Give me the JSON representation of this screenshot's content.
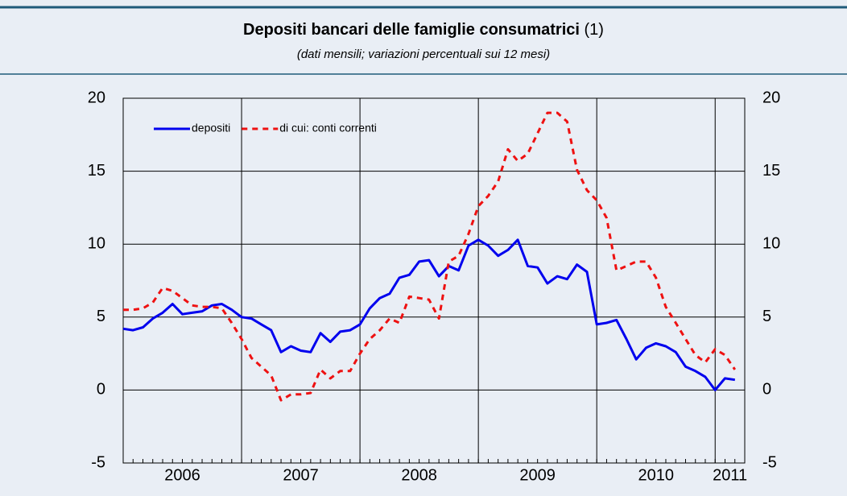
{
  "chart_data": {
    "type": "line",
    "title": "Depositi bancari delle famiglie consumatrici",
    "title_note": "(1)",
    "subtitle": "(dati mensili; variazioni percentuali sui 12 mesi)",
    "x": [
      2006,
      2006.083,
      2006.167,
      2006.25,
      2006.333,
      2006.417,
      2006.5,
      2006.583,
      2006.667,
      2006.75,
      2006.833,
      2006.917,
      2007,
      2007.083,
      2007.167,
      2007.25,
      2007.333,
      2007.417,
      2007.5,
      2007.583,
      2007.667,
      2007.75,
      2007.833,
      2007.917,
      2008,
      2008.083,
      2008.167,
      2008.25,
      2008.333,
      2008.417,
      2008.5,
      2008.583,
      2008.667,
      2008.75,
      2008.833,
      2008.917,
      2009,
      2009.083,
      2009.167,
      2009.25,
      2009.333,
      2009.417,
      2009.5,
      2009.583,
      2009.667,
      2009.75,
      2009.833,
      2009.917,
      2010,
      2010.083,
      2010.167,
      2010.25,
      2010.333,
      2010.417,
      2010.5,
      2010.583,
      2010.667,
      2010.75,
      2010.833,
      2010.917,
      2011,
      2011.083,
      2011.167
    ],
    "series": [
      {
        "name": "depositi",
        "color": "#0000ee",
        "dashed": false,
        "values": [
          4.2,
          4.1,
          4.3,
          4.9,
          5.3,
          5.9,
          5.2,
          5.3,
          5.4,
          5.8,
          5.9,
          5.5,
          5.0,
          4.9,
          4.5,
          4.1,
          2.6,
          3.0,
          2.7,
          2.6,
          3.9,
          3.3,
          4.0,
          4.1,
          4.5,
          5.6,
          6.3,
          6.6,
          7.7,
          7.9,
          8.8,
          8.9,
          7.8,
          8.5,
          8.2,
          9.9,
          10.3,
          9.9,
          9.2,
          9.6,
          10.3,
          8.5,
          8.4,
          7.3,
          7.8,
          7.6,
          8.6,
          8.1,
          4.5,
          4.6,
          4.8,
          3.5,
          2.1,
          2.9,
          3.2,
          3.0,
          2.6,
          1.6,
          1.3,
          0.9,
          0.0,
          0.8,
          0.7
        ]
      },
      {
        "name": "di cui: conti correnti",
        "color": "#ee1111",
        "dashed": true,
        "values": [
          5.5,
          5.5,
          5.6,
          6.0,
          7.0,
          6.8,
          6.3,
          5.8,
          5.7,
          5.7,
          5.6,
          4.6,
          3.5,
          2.2,
          1.6,
          1.0,
          -0.7,
          -0.3,
          -0.3,
          -0.2,
          1.4,
          0.8,
          1.3,
          1.3,
          2.5,
          3.5,
          4.1,
          4.9,
          4.6,
          6.4,
          6.3,
          6.2,
          4.9,
          8.8,
          9.2,
          10.7,
          12.6,
          13.3,
          14.3,
          16.5,
          15.7,
          16.2,
          17.6,
          19.0,
          19.0,
          18.4,
          15.1,
          13.7,
          13.0,
          11.8,
          8.2,
          8.5,
          8.8,
          8.8,
          7.7,
          5.7,
          4.6,
          3.5,
          2.4,
          1.9,
          2.8,
          2.4,
          1.4
        ]
      }
    ],
    "xlim": [
      2006,
      2011.25
    ],
    "xticks": [
      2006,
      2007,
      2008,
      2009,
      2010,
      2011
    ],
    "ylim": [
      -5,
      20
    ],
    "yticks": [
      -5,
      0,
      5,
      10,
      15,
      20
    ],
    "y2lim": [
      -5,
      20
    ],
    "y2ticks": [
      -5,
      0,
      5,
      10,
      15,
      20
    ],
    "grid": true,
    "legend": "upper left"
  }
}
